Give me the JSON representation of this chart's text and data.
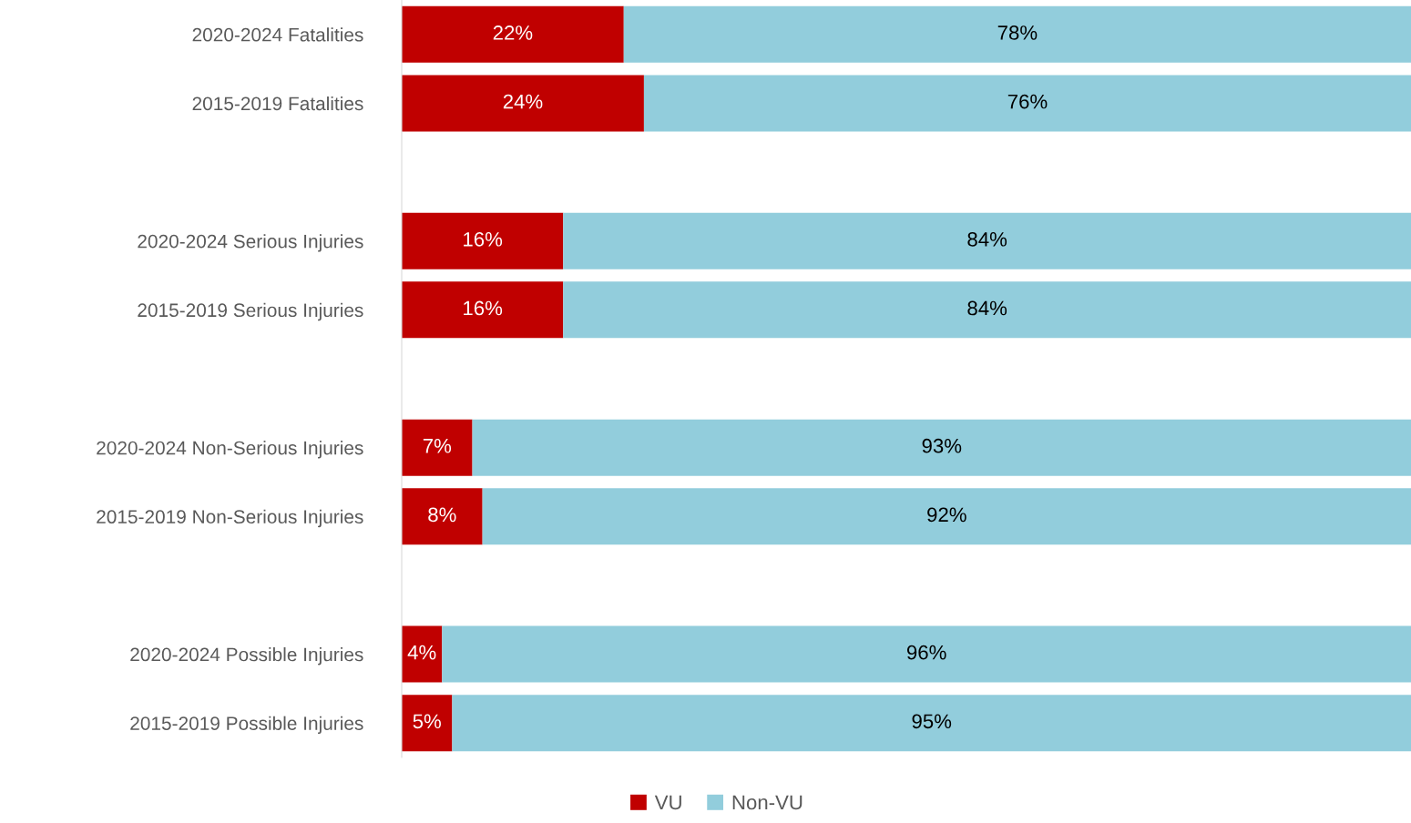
{
  "chart_data": {
    "type": "bar",
    "orientation": "horizontal",
    "stacked": true,
    "tick_labels": "y",
    "legend": "bottom",
    "grid": false,
    "categories": [
      "2020-2024 Fatalities",
      "2015-2019 Fatalities",
      null,
      "2020-2024 Serious Injuries",
      "2015-2019 Serious Injuries",
      null,
      "2020-2024 Non-Serious Injuries",
      "2015-2019 Non-Serious Injuries",
      null,
      "2020-2024 Possible Injuries",
      "2015-2019 Possible Injuries"
    ],
    "series": [
      {
        "name": "VU",
        "color": "#c00000",
        "values": [
          22,
          24,
          null,
          16,
          16,
          null,
          7,
          8,
          null,
          4,
          5
        ],
        "value_labels": [
          "22%",
          "24%",
          null,
          "16%",
          "16%",
          null,
          "7%",
          "8%",
          null,
          "4%",
          "5%"
        ]
      },
      {
        "name": "Non-VU",
        "color": "#92cddc",
        "values": [
          78,
          76,
          null,
          84,
          84,
          null,
          93,
          92,
          null,
          96,
          95
        ],
        "value_labels": [
          "78%",
          "76%",
          null,
          "84%",
          "84%",
          null,
          "93%",
          "92%",
          null,
          "96%",
          "95%"
        ]
      }
    ]
  }
}
